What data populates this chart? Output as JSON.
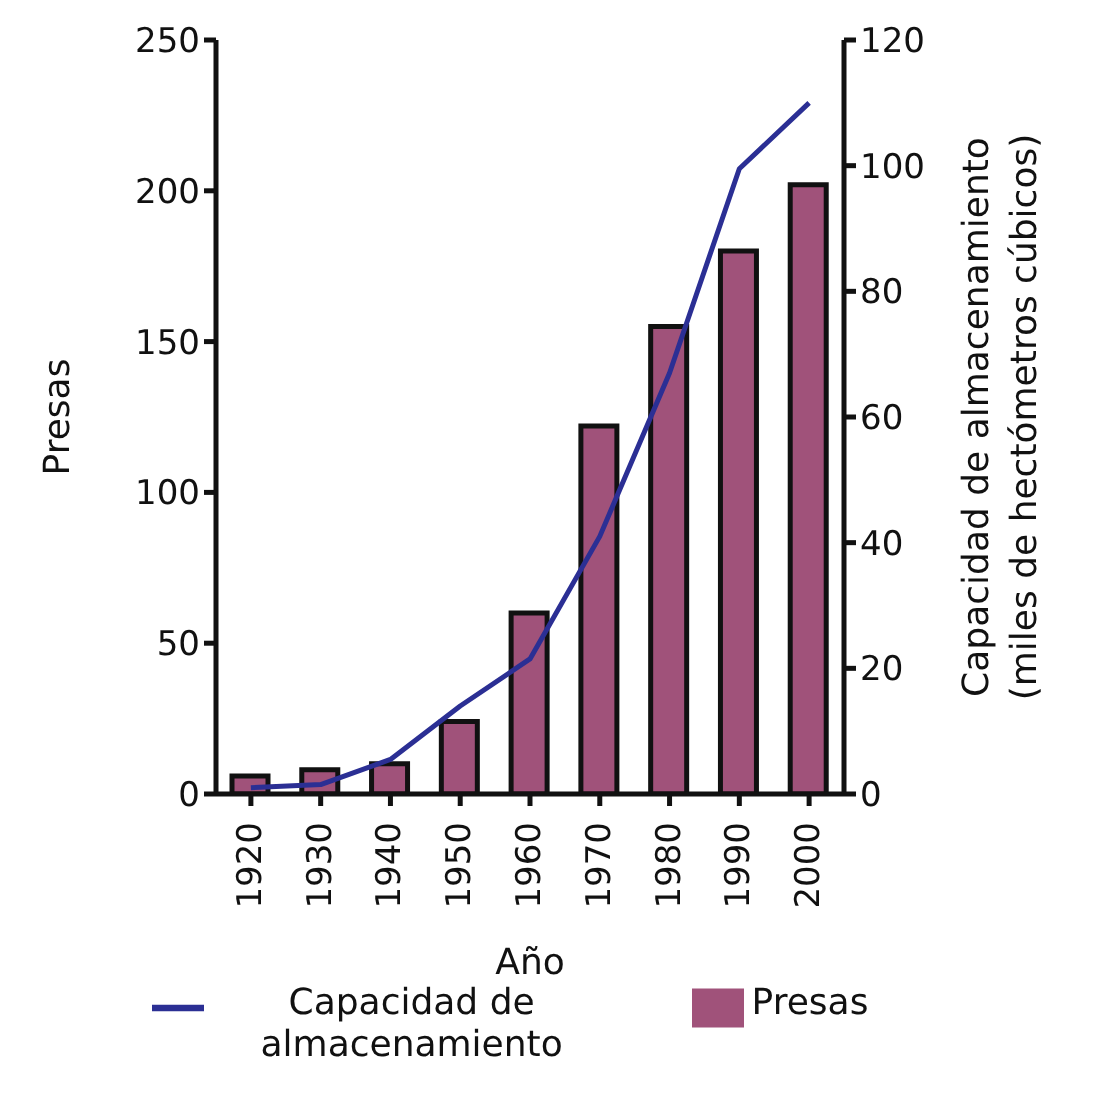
{
  "chart_data": {
    "type": "bar",
    "xlabel": "Año",
    "ylabel": "Presas",
    "y2label": "Capacidad de almacenamiento (miles de hectómetros cúbicos)",
    "categories": [
      "1920",
      "1930",
      "1940",
      "1950",
      "1960",
      "1970",
      "1980",
      "1990",
      "2000"
    ],
    "series": [
      {
        "name": "Presas",
        "color": "#a0527a",
        "values": [
          6,
          8,
          10,
          24,
          60,
          122,
          155,
          180,
          202
        ]
      },
      {
        "name": "Capacidad de almacenamiento",
        "type": "line",
        "axis": "y2",
        "color": "#2b2f94",
        "values": [
          1,
          1.5,
          5.5,
          14,
          21.5,
          41,
          67,
          99.5,
          110
        ]
      }
    ],
    "ylim": [
      0,
      250
    ],
    "yticks": [
      0,
      50,
      100,
      150,
      200,
      250
    ],
    "y2lim": [
      0,
      120
    ],
    "y2ticks": [
      0,
      20,
      40,
      60,
      80,
      100,
      120
    ],
    "legend": "bottom",
    "marker": "none"
  }
}
